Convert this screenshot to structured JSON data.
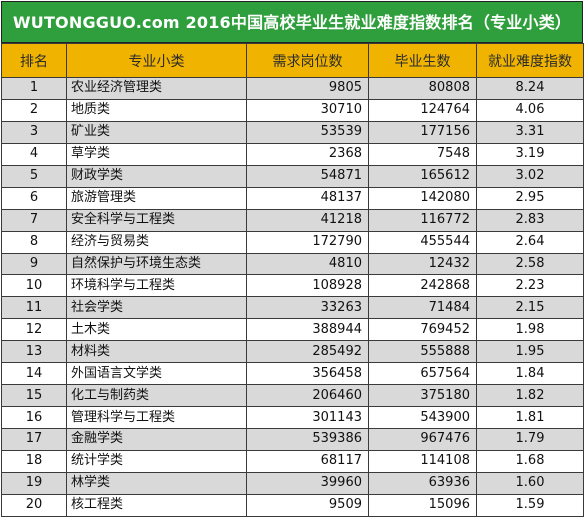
{
  "title": "WUTONGGUO.com 2016中国高校毕业生就业难度指数排名（专业小类）",
  "headers": {
    "rank": "排名",
    "major": "专业小类",
    "demand": "需求岗位数",
    "graduates": "毕业生数",
    "index": "就业难度指数"
  },
  "rows": [
    {
      "rank": "1",
      "major": "农业经济管理类",
      "demand": "9805",
      "graduates": "80808",
      "index": "8.24"
    },
    {
      "rank": "2",
      "major": "地质类",
      "demand": "30710",
      "graduates": "124764",
      "index": "4.06"
    },
    {
      "rank": "3",
      "major": "矿业类",
      "demand": "53539",
      "graduates": "177156",
      "index": "3.31"
    },
    {
      "rank": "4",
      "major": "草学类",
      "demand": "2368",
      "graduates": "7548",
      "index": "3.19"
    },
    {
      "rank": "5",
      "major": "财政学类",
      "demand": "54871",
      "graduates": "165612",
      "index": "3.02"
    },
    {
      "rank": "6",
      "major": "旅游管理类",
      "demand": "48137",
      "graduates": "142080",
      "index": "2.95"
    },
    {
      "rank": "7",
      "major": "安全科学与工程类",
      "demand": "41218",
      "graduates": "116772",
      "index": "2.83"
    },
    {
      "rank": "8",
      "major": "经济与贸易类",
      "demand": "172790",
      "graduates": "455544",
      "index": "2.64"
    },
    {
      "rank": "9",
      "major": "自然保护与环境生态类",
      "demand": "4810",
      "graduates": "12432",
      "index": "2.58"
    },
    {
      "rank": "10",
      "major": "环境科学与工程类",
      "demand": "108928",
      "graduates": "242868",
      "index": "2.23"
    },
    {
      "rank": "11",
      "major": "社会学类",
      "demand": "33263",
      "graduates": "71484",
      "index": "2.15"
    },
    {
      "rank": "12",
      "major": "土木类",
      "demand": "388944",
      "graduates": "769452",
      "index": "1.98"
    },
    {
      "rank": "13",
      "major": "材料类",
      "demand": "285492",
      "graduates": "555888",
      "index": "1.95"
    },
    {
      "rank": "14",
      "major": "外国语言文学类",
      "demand": "356458",
      "graduates": "657564",
      "index": "1.84"
    },
    {
      "rank": "15",
      "major": "化工与制药类",
      "demand": "206460",
      "graduates": "375180",
      "index": "1.82"
    },
    {
      "rank": "16",
      "major": "管理科学与工程类",
      "demand": "301143",
      "graduates": "543900",
      "index": "1.81"
    },
    {
      "rank": "17",
      "major": "金融学类",
      "demand": "539386",
      "graduates": "967476",
      "index": "1.79"
    },
    {
      "rank": "18",
      "major": "统计学类",
      "demand": "68117",
      "graduates": "114108",
      "index": "1.68"
    },
    {
      "rank": "19",
      "major": "林学类",
      "demand": "39960",
      "graduates": "63936",
      "index": "1.60"
    },
    {
      "rank": "20",
      "major": "核工程类",
      "demand": "9509",
      "graduates": "15096",
      "index": "1.59"
    }
  ],
  "colors": {
    "title_background": "#2f9e3c",
    "header_background": "#f0b400",
    "stripe_gray": "#d9d9d9",
    "stripe_white": "#ffffff"
  }
}
